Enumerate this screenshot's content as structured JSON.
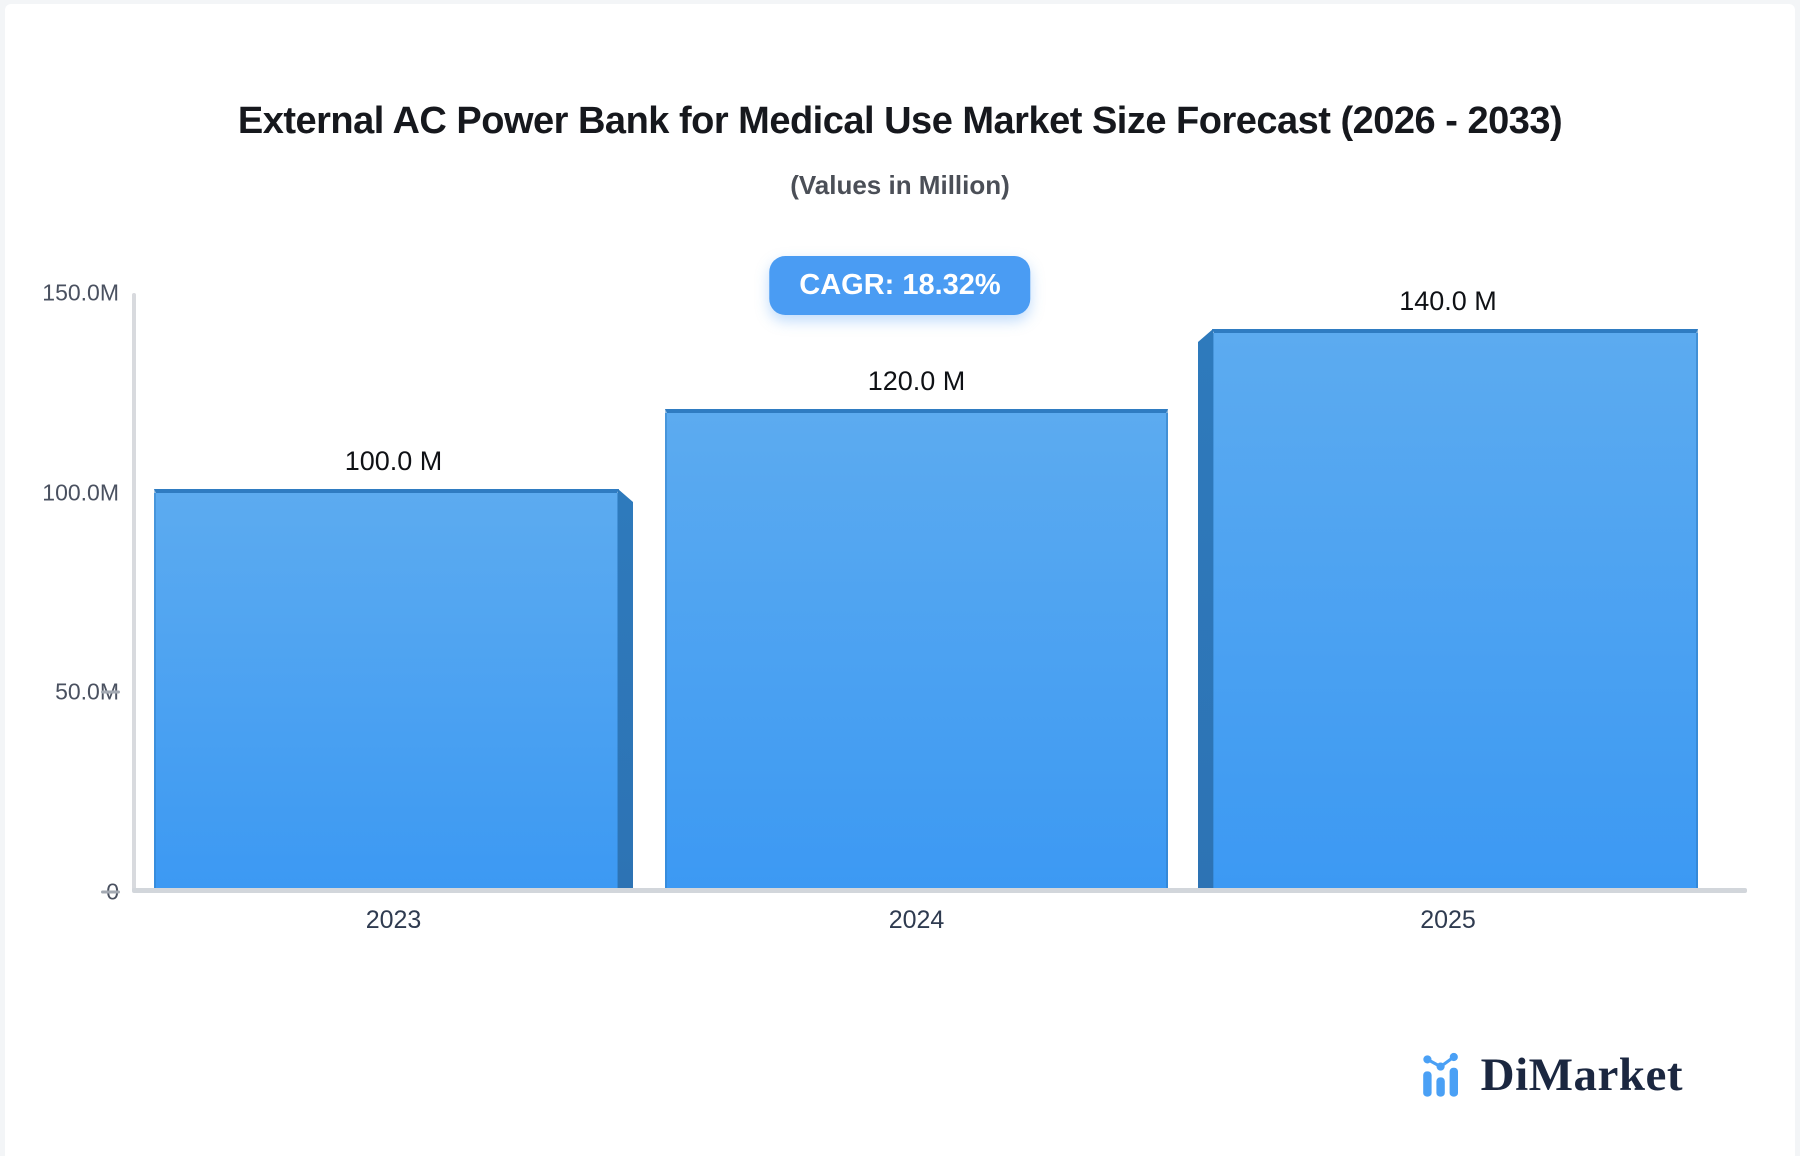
{
  "title": "External AC Power Bank for Medical Use Market Size Forecast (2026 - 2033)",
  "subtitle": "(Values in Million)",
  "cagr_badge": "CAGR: 18.32%",
  "brand": {
    "name": "DiMarket",
    "icon": "bar-chart-logo-icon"
  },
  "colors": {
    "accent": "#4a9cf3",
    "bar_top": "#5cabf0",
    "bar_bottom": "#3c99f3",
    "bar_side": "#2d73b4",
    "bar_edge": "#2f7cc2",
    "axis_line": "#d8dade",
    "text_dark": "#16181d",
    "logo_navy": "#1b2740",
    "logo_blue": "#4aa0f5"
  },
  "chart_data": {
    "type": "bar",
    "title": "External AC Power Bank for Medical Use Market Size Forecast (2026 - 2033)",
    "subtitle": "(Values in Million)",
    "categories": [
      "2023",
      "2024",
      "2025"
    ],
    "values": [
      100.0,
      120.0,
      140.0
    ],
    "bar_labels": [
      "100.0 M",
      "120.0 M",
      "140.0 M"
    ],
    "unit": "Million",
    "ylim": [
      0,
      150
    ],
    "grid": false,
    "legend": "none",
    "value_label_position": "above-bar",
    "y_ticks": [
      {
        "label": "150.0M",
        "value": 150,
        "dash": false
      },
      {
        "label": "100.0M",
        "value": 100,
        "dash": false
      },
      {
        "label": "50.0M",
        "value": 50,
        "dash": true
      },
      {
        "label": "0",
        "value": 0,
        "dash": true
      }
    ]
  }
}
